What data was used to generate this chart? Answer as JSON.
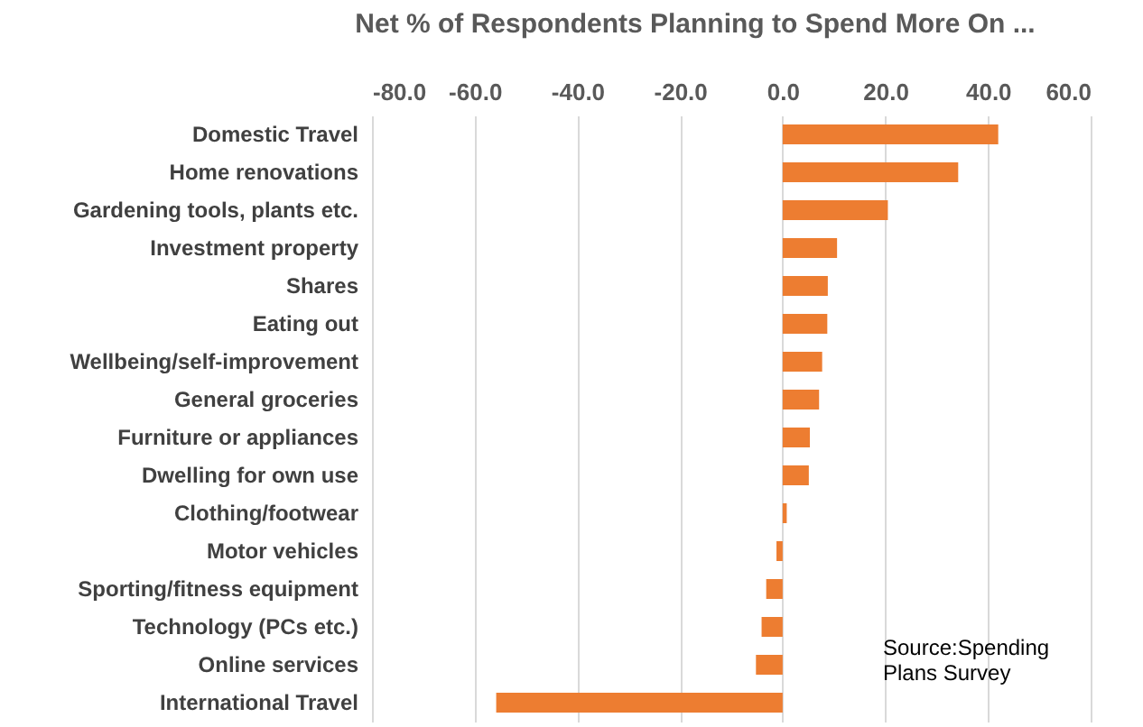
{
  "chart_data": {
    "type": "bar",
    "orientation": "horizontal",
    "title": "Net % of Respondents Planning to Spend More On ...",
    "categories": [
      "Domestic Travel",
      "Home renovations",
      "Gardening tools, plants etc.",
      "Investment property",
      "Shares",
      "Eating out",
      "Wellbeing/self-improvement",
      "General groceries",
      "Furniture or appliances",
      "Dwelling for own use",
      "Clothing/footwear",
      "Motor vehicles",
      "Sporting/fitness equipment",
      "Technology (PCs etc.)",
      "Online services",
      "International Travel"
    ],
    "values": [
      42.0,
      34.2,
      20.5,
      10.6,
      8.8,
      8.7,
      7.7,
      7.1,
      5.3,
      5.1,
      0.8,
      -1.2,
      -3.2,
      -4.1,
      -5.2,
      -55.8
    ],
    "color": "#ed7d31",
    "xlim": [
      -80,
      60
    ],
    "xticks": [
      {
        "value": -80,
        "label": "-80.0"
      },
      {
        "value": -60,
        "label": "-60.0"
      },
      {
        "value": -40,
        "label": "-40.0"
      },
      {
        "value": -20,
        "label": "-20.0"
      },
      {
        "value": 0,
        "label": "0.0"
      },
      {
        "value": 20,
        "label": "20.0"
      },
      {
        "value": 40,
        "label": "40.0"
      },
      {
        "value": 60,
        "label": "60.0"
      }
    ],
    "grid": "x",
    "annotations": [
      "Source:Spending Plans Survey"
    ]
  }
}
